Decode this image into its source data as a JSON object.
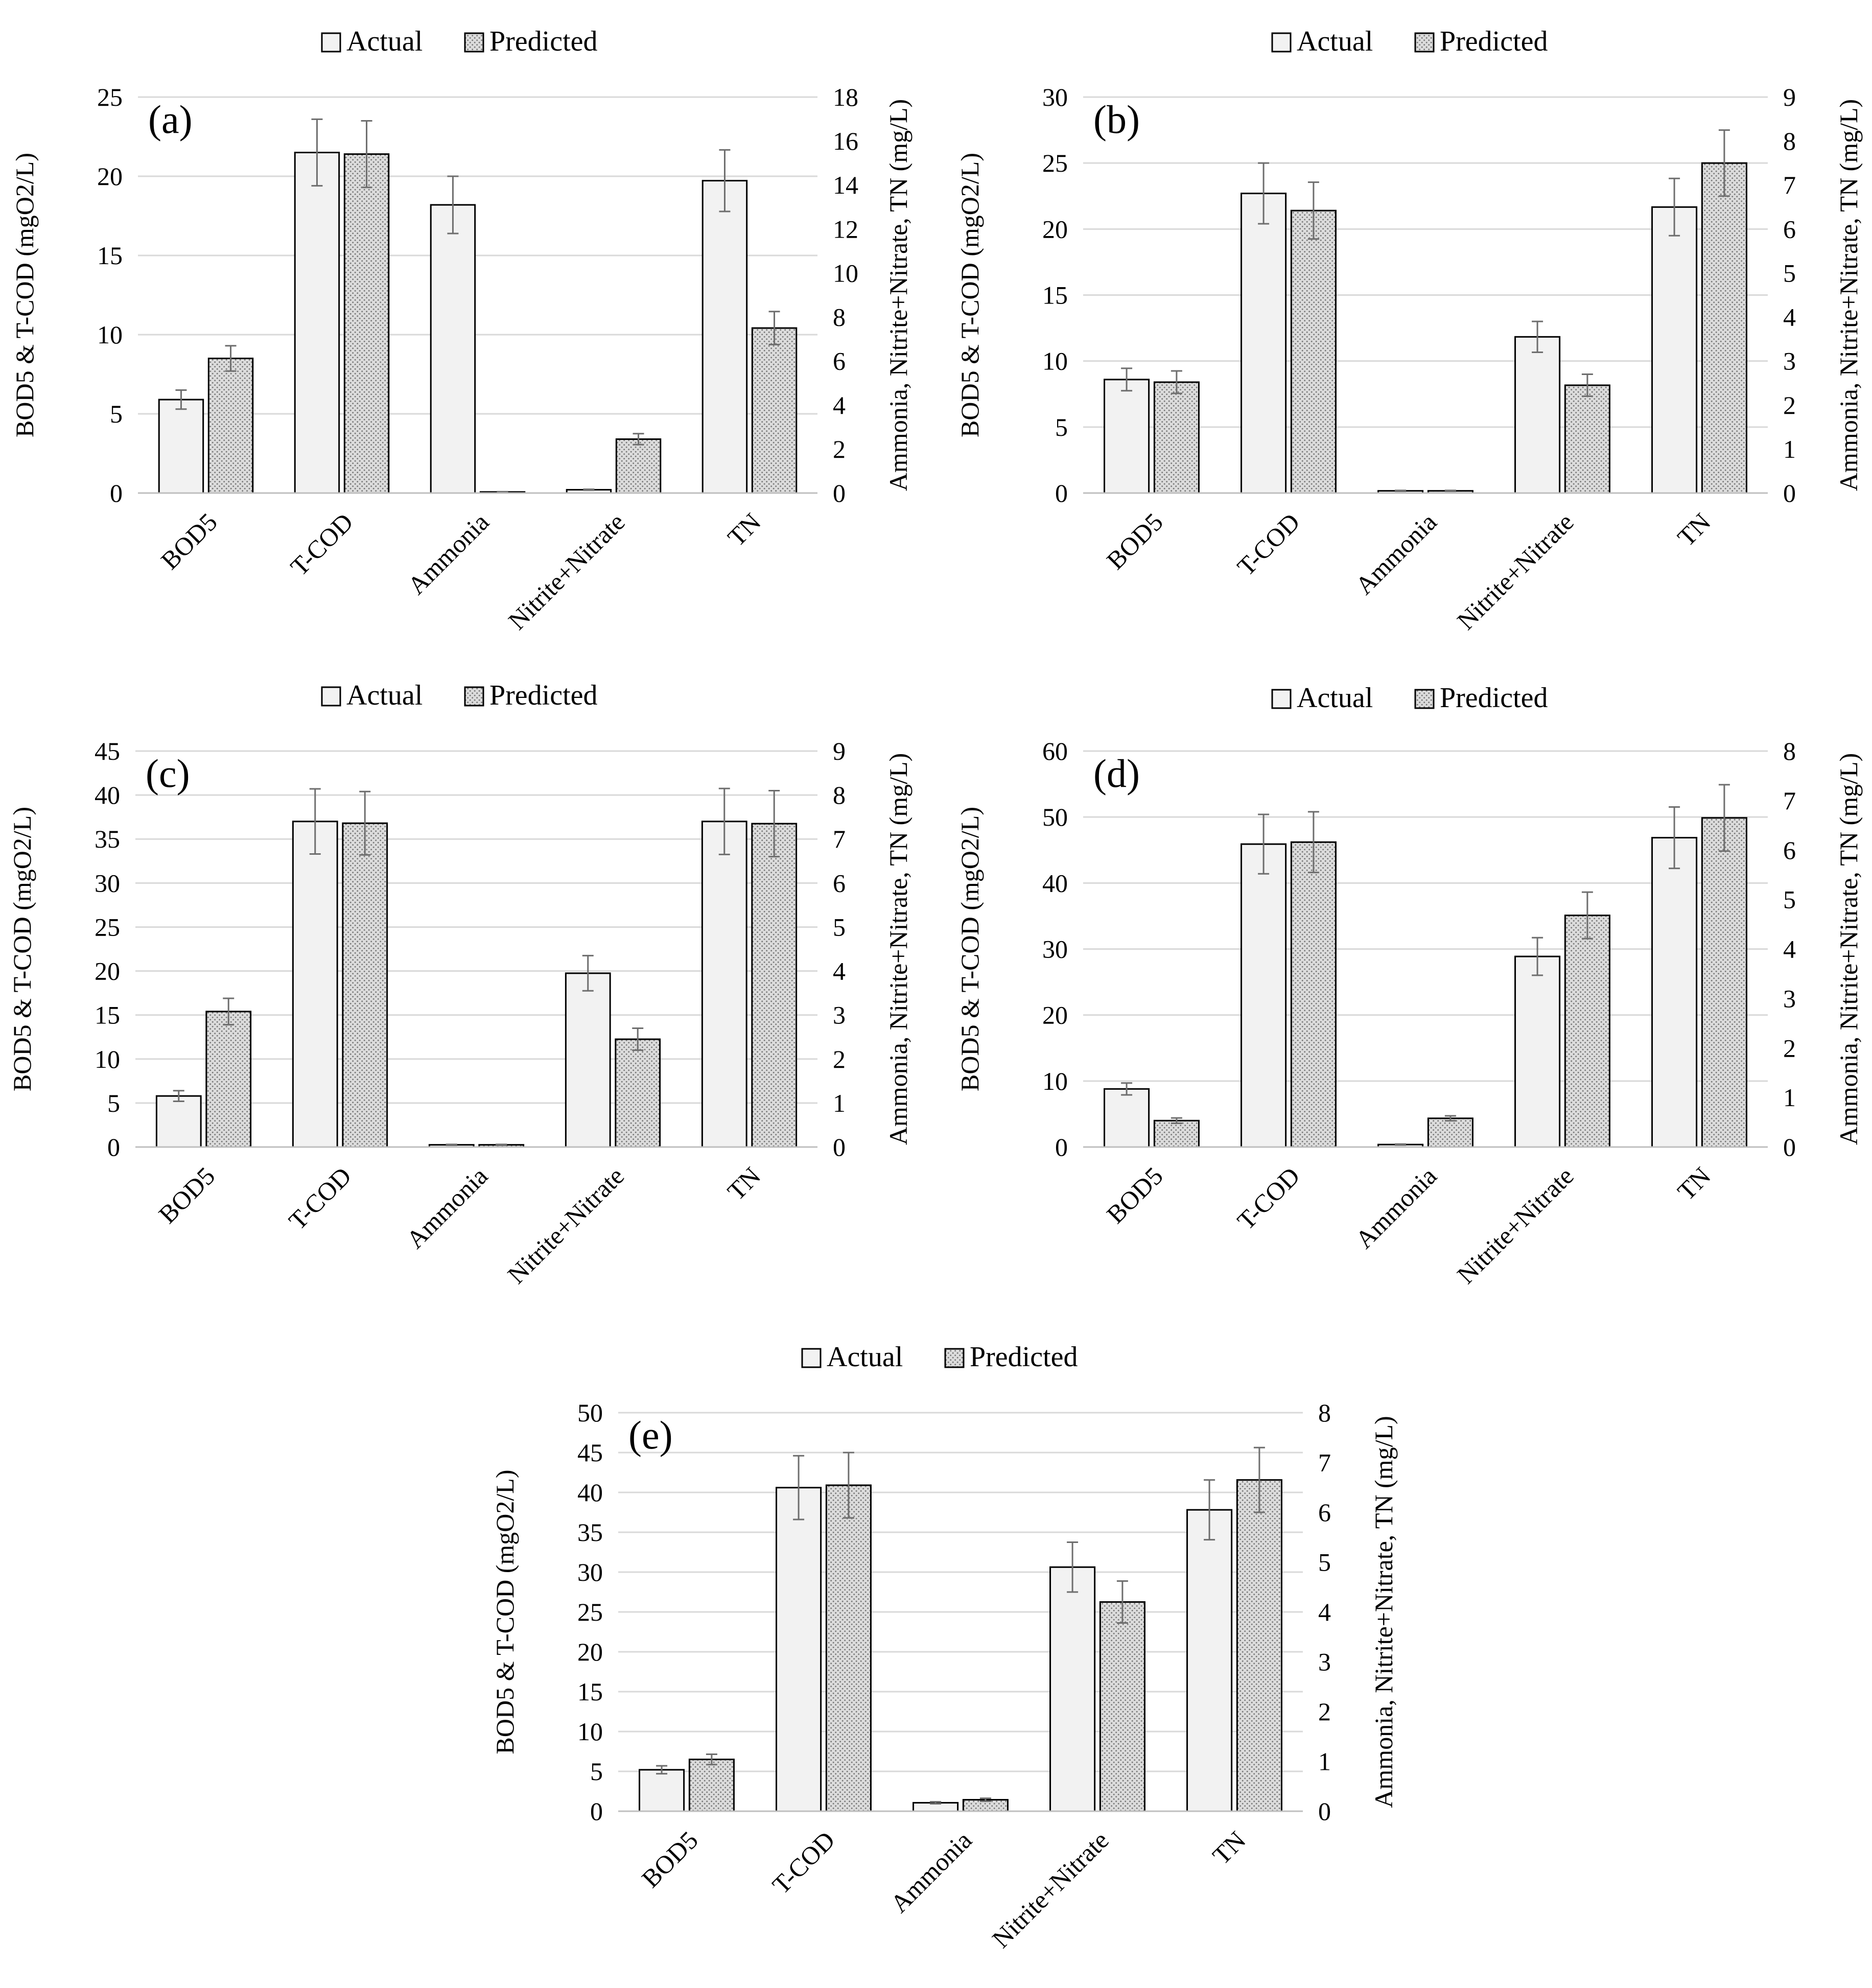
{
  "figure": {
    "legend": {
      "actual_label": "Actual",
      "predicted_label": "Predicted"
    },
    "left_axis_label": "BOD5 & T-COD (mgO2/L)",
    "right_axis_label": "Ammonia, Nitrite+Nitrate, TN (mg/L)"
  },
  "colors": {
    "actual_fill": "#f2f2f2",
    "predicted_fill": "#d9d9d9",
    "bar_stroke": "#000000",
    "grid": "#d9d9d9",
    "error_bar": "#6e6e6e"
  },
  "chart_data": [
    {
      "type": "bar",
      "title": "(a)",
      "categories": [
        "BOD5",
        "T-COD",
        "Ammonia",
        "Nitrite+Nitrate",
        "TN"
      ],
      "axis_by_category": [
        "left",
        "left",
        "right",
        "right",
        "right"
      ],
      "ylabel": "BOD5 & T-COD (mgO2/L)",
      "y2label": "Ammonia, Nitrite+Nitrate, TN (mg/L)",
      "ylim": [
        0,
        25
      ],
      "yticks": [
        0,
        5,
        10,
        15,
        20,
        25
      ],
      "y2lim": [
        0,
        18
      ],
      "y2ticks": [
        0,
        2,
        4,
        6,
        8,
        10,
        12,
        14,
        16,
        18
      ],
      "grid": true,
      "legend": "top-center",
      "series": [
        {
          "name": "Actual",
          "values": [
            5.9,
            21.5,
            13.1,
            0.15,
            14.2
          ],
          "errors": [
            0.6,
            2.1,
            1.3,
            0.02,
            1.4
          ]
        },
        {
          "name": "Predicted",
          "values": [
            8.5,
            21.4,
            0.05,
            2.45,
            7.5
          ],
          "errors": [
            0.8,
            2.1,
            0.01,
            0.25,
            0.75
          ]
        }
      ]
    },
    {
      "type": "bar",
      "title": "(b)",
      "categories": [
        "BOD5",
        "T-COD",
        "Ammonia",
        "Nitrite+Nitrate",
        "TN"
      ],
      "axis_by_category": [
        "left",
        "left",
        "right",
        "right",
        "right"
      ],
      "ylabel": "BOD5 & T-COD (mgO2/L)",
      "y2label": "Ammonia, Nitrite+Nitrate, TN (mg/L)",
      "ylim": [
        0,
        30
      ],
      "yticks": [
        0,
        5,
        10,
        15,
        20,
        25,
        30
      ],
      "y2lim": [
        0,
        9
      ],
      "y2ticks": [
        0,
        1,
        2,
        3,
        4,
        5,
        6,
        7,
        8,
        9
      ],
      "grid": true,
      "legend": "top-center",
      "series": [
        {
          "name": "Actual",
          "values": [
            8.6,
            22.7,
            0.05,
            3.55,
            6.5
          ],
          "errors": [
            0.85,
            2.3,
            0.01,
            0.35,
            0.65
          ]
        },
        {
          "name": "Predicted",
          "values": [
            8.4,
            21.4,
            0.05,
            2.45,
            7.5
          ],
          "errors": [
            0.85,
            2.15,
            0.01,
            0.25,
            0.75
          ]
        }
      ]
    },
    {
      "type": "bar",
      "title": "(c)",
      "categories": [
        "BOD5",
        "T-COD",
        "Ammonia",
        "Nitrite+Nitrate",
        "TN"
      ],
      "axis_by_category": [
        "left",
        "left",
        "right",
        "right",
        "right"
      ],
      "ylabel": "BOD5 & T-COD (mgO2/L)",
      "y2label": "Ammonia, Nitrite+Nitrate, TN (mg/L)",
      "ylim": [
        0,
        45
      ],
      "yticks": [
        0,
        5,
        10,
        15,
        20,
        25,
        30,
        35,
        40,
        45
      ],
      "y2lim": [
        0,
        9
      ],
      "y2ticks": [
        0,
        1,
        2,
        3,
        4,
        5,
        6,
        7,
        8,
        9
      ],
      "grid": true,
      "legend": "top-center",
      "series": [
        {
          "name": "Actual",
          "values": [
            5.8,
            37.0,
            0.05,
            3.95,
            7.4
          ],
          "errors": [
            0.6,
            3.7,
            0.01,
            0.4,
            0.75
          ]
        },
        {
          "name": "Predicted",
          "values": [
            15.4,
            36.8,
            0.05,
            2.45,
            7.35
          ],
          "errors": [
            1.5,
            3.6,
            0.01,
            0.25,
            0.75
          ]
        }
      ]
    },
    {
      "type": "bar",
      "title": "(d)",
      "categories": [
        "BOD5",
        "T-COD",
        "Ammonia",
        "Nitrite+Nitrate",
        "TN"
      ],
      "axis_by_category": [
        "left",
        "left",
        "right",
        "right",
        "right"
      ],
      "ylabel": "BOD5 & T-COD (mgO2/L)",
      "y2label": "Ammonia, Nitrite+Nitrate, TN (mg/L)",
      "ylim": [
        0,
        60
      ],
      "yticks": [
        0,
        10,
        20,
        30,
        40,
        50,
        60
      ],
      "y2lim": [
        0,
        8
      ],
      "y2ticks": [
        0,
        1,
        2,
        3,
        4,
        5,
        6,
        7,
        8
      ],
      "grid": true,
      "legend": "top-center",
      "series": [
        {
          "name": "Actual",
          "values": [
            8.8,
            45.9,
            0.05,
            3.85,
            6.25
          ],
          "errors": [
            0.9,
            4.5,
            0.01,
            0.38,
            0.62
          ]
        },
        {
          "name": "Predicted",
          "values": [
            4.0,
            46.2,
            0.58,
            4.68,
            6.65
          ],
          "errors": [
            0.4,
            4.6,
            0.05,
            0.47,
            0.67
          ]
        }
      ]
    },
    {
      "type": "bar",
      "title": "(e)",
      "categories": [
        "BOD5",
        "T-COD",
        "Ammonia",
        "Nitrite+Nitrate",
        "TN"
      ],
      "axis_by_category": [
        "left",
        "left",
        "right",
        "right",
        "right"
      ],
      "ylabel": "BOD5 & T-COD (mgO2/L)",
      "y2label": "Ammonia, Nitrite+Nitrate, TN (mg/L)",
      "ylim": [
        0,
        50
      ],
      "yticks": [
        0,
        5,
        10,
        15,
        20,
        25,
        30,
        35,
        40,
        45,
        50
      ],
      "y2lim": [
        0,
        8
      ],
      "y2ticks": [
        0,
        1,
        2,
        3,
        4,
        5,
        6,
        7,
        8
      ],
      "grid": true,
      "legend": "top-center",
      "series": [
        {
          "name": "Actual",
          "values": [
            5.2,
            40.6,
            0.17,
            4.9,
            6.05
          ],
          "errors": [
            0.5,
            4.0,
            0.02,
            0.5,
            0.6
          ]
        },
        {
          "name": "Predicted",
          "values": [
            6.5,
            40.9,
            0.23,
            4.2,
            6.65
          ],
          "errors": [
            0.65,
            4.1,
            0.03,
            0.42,
            0.65
          ]
        }
      ]
    }
  ]
}
